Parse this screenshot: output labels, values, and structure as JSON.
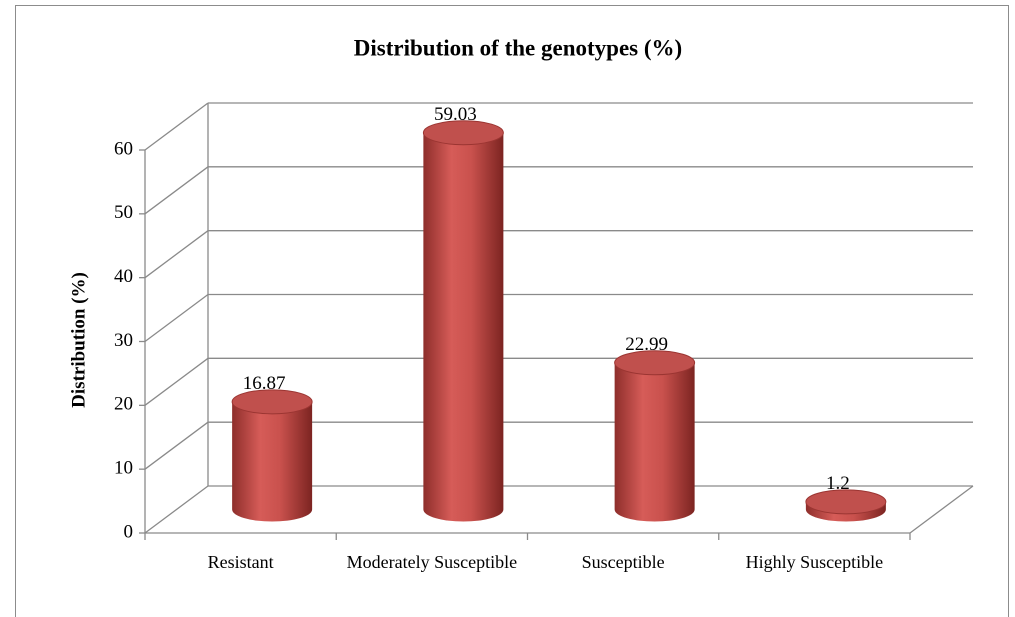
{
  "chart_data": {
    "type": "bar",
    "title": "Distribution of the genotypes (%)",
    "y_label": "Distribution  (%)",
    "categories": [
      "Resistant",
      "Moderately Susceptible",
      "Susceptible",
      "Highly Susceptible"
    ],
    "values": [
      16.87,
      59.03,
      22.99,
      1.2
    ],
    "color": "#c0504d",
    "ylim": [
      0,
      60
    ],
    "yticks": [
      0,
      10,
      20,
      30,
      40,
      50,
      60
    ],
    "grid": true
  }
}
